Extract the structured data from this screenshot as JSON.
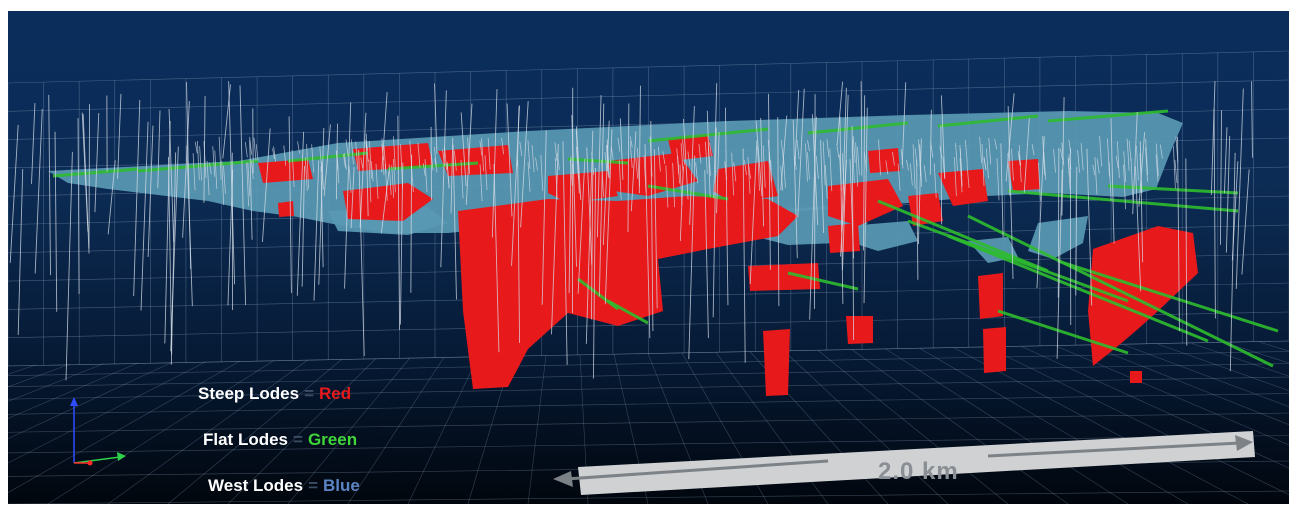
{
  "legend": {
    "steep": {
      "name": "Steep Lodes",
      "eq": "=",
      "value": "Red",
      "color": "#e8191b"
    },
    "flat": {
      "name": "Flat Lodes",
      "eq": "=",
      "value": "Green",
      "color": "#3fd63a"
    },
    "west": {
      "name": "West Lodes",
      "eq": "=",
      "value": "Blue",
      "color": "#5b84c4"
    }
  },
  "scale_bar": {
    "label": "2.0 km"
  },
  "colors": {
    "steep": "#e8191b",
    "flat": "#2ebd2e",
    "west": "#5a99b3",
    "drillhole": "#d9e1ea",
    "grid": "#8ea4bf",
    "scale_bar": "#cfd1d3",
    "axis_z": "#2f4cff",
    "axis_y": "#2fd04a",
    "axis_x": "#ff2a2a"
  },
  "icons": {
    "axes": "xyz-axes-gizmo-icon"
  }
}
